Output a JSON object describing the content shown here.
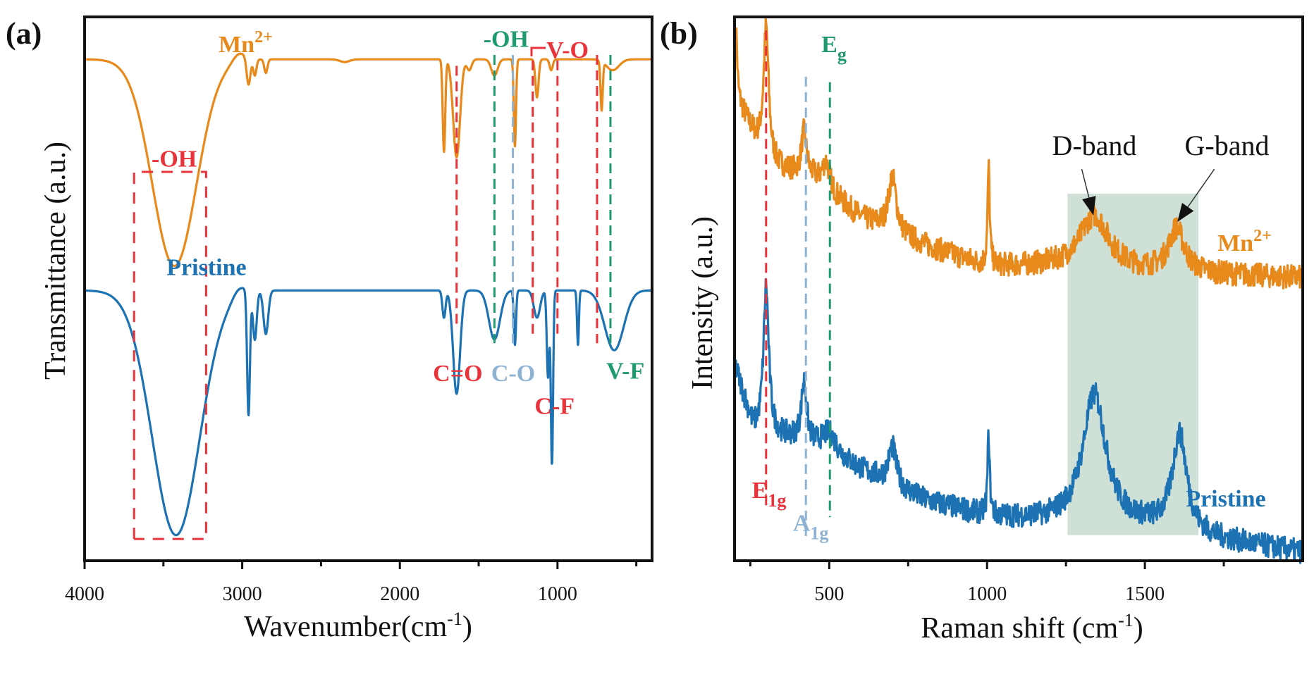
{
  "colors": {
    "mn": "#E8891C",
    "pristine": "#1C72B3",
    "red": "#E8333B",
    "green": "#1F9A6F",
    "lightblue": "#8DB2D4",
    "shade": "#CFE0D6"
  },
  "chart_data": [
    {
      "panel": "(a)",
      "type": "line",
      "xlabel": "Wavenumber",
      "xlabel_unit": "(cm",
      "xlabel_sup": "-1",
      "xlabel_close": ")",
      "ylabel": "Transmittance (a.u.)",
      "xlim": [
        4000,
        400
      ],
      "ylim": [
        0,
        100
      ],
      "xticks": [
        4000,
        3000,
        2000,
        1000
      ],
      "minor_xticks": [
        3500,
        2500,
        1500,
        500
      ],
      "series": [
        {
          "name": "Mn",
          "sup": "2+",
          "color_key": "mn",
          "baseline": [
            [
              4000,
              92.2
            ],
            [
              400,
              92.2
            ]
          ],
          "peaks": [
            [
              3430,
              -38,
              140
            ],
            [
              3020,
              1.5,
              40
            ],
            [
              2960,
              -5,
              12
            ],
            [
              2920,
              -3,
              10
            ],
            [
              2850,
              -2.5,
              10
            ],
            [
              2350,
              -0.5,
              30
            ],
            [
              1720,
              -17,
              8
            ],
            [
              1640,
              -18,
              22
            ],
            [
              1560,
              -2,
              15
            ],
            [
              1400,
              -3,
              20
            ],
            [
              1270,
              -16,
              7
            ],
            [
              1130,
              -7,
              10
            ],
            [
              1040,
              -2,
              10
            ],
            [
              720,
              -9,
              7
            ],
            [
              650,
              -2,
              40
            ]
          ]
        },
        {
          "name": "Pristine",
          "sup": "",
          "color_key": "pristine",
          "baseline": [
            [
              4000,
              49.7
            ],
            [
              400,
              49.7
            ]
          ],
          "peaks": [
            [
              3420,
              -45,
              150
            ],
            [
              3020,
              1.5,
              40
            ],
            [
              2960,
              -23,
              9
            ],
            [
              2920,
              -9,
              12
            ],
            [
              2850,
              -8,
              15
            ],
            [
              1720,
              -5,
              10
            ],
            [
              1640,
              -19,
              22
            ],
            [
              1400,
              -9,
              35
            ],
            [
              1270,
              -10,
              7
            ],
            [
              1130,
              -5,
              20
            ],
            [
              1060,
              -16,
              8
            ],
            [
              1035,
              -32,
              7
            ],
            [
              870,
              -10,
              6
            ],
            [
              640,
              -11,
              60
            ]
          ]
        }
      ],
      "vlines": [
        {
          "x": 1640,
          "color_key": "red",
          "y": [
            91,
            43
          ]
        },
        {
          "x": 1400,
          "color_key": "green",
          "y": [
            93,
            40
          ]
        },
        {
          "x": 1283,
          "color_key": "lightblue",
          "y": [
            93,
            40
          ]
        },
        {
          "x": 1157,
          "color_key": "red",
          "y": [
            92,
            41
          ]
        },
        {
          "x": 1000,
          "color_key": "red",
          "y": [
            92,
            41
          ]
        },
        {
          "x": 749,
          "color_key": "red",
          "y": [
            93,
            40
          ]
        },
        {
          "x": 664,
          "color_key": "green",
          "y": [
            93,
            40
          ]
        }
      ],
      "oh_box": {
        "x": [
          3686,
          3229
        ],
        "y": [
          71.5,
          4
        ]
      },
      "annotations": [
        {
          "text": "-OH",
          "color_key": "green",
          "x": 1470,
          "y": 94.5
        },
        {
          "text": "V-O",
          "color_key": "red",
          "x": 1070,
          "y": 92.5
        },
        {
          "text": "-OH",
          "color_key": "red",
          "x": 3575,
          "y": 72.5
        },
        {
          "text": "Pristine",
          "color_key": "pristine",
          "x": 3480,
          "y": 52.5
        },
        {
          "text": "C=O",
          "color_key": "red",
          "x": 1790,
          "y": 33
        },
        {
          "text": "C-O",
          "color_key": "lightblue",
          "x": 1420,
          "y": 33
        },
        {
          "text": "C-F",
          "color_key": "red",
          "x": 1145,
          "y": 27
        },
        {
          "text": "V-F",
          "color_key": "green",
          "x": 690,
          "y": 33.5
        }
      ],
      "mn_label_pos": {
        "x": 3150,
        "y": 93.5
      }
    },
    {
      "panel": "(b)",
      "type": "line",
      "xlabel": "Raman shift (cm",
      "xlabel_sup": "-1",
      "xlabel_close": ")",
      "ylabel": "Intensity (a.u.)",
      "xlim": [
        200,
        2000
      ],
      "ylim": [
        0,
        100
      ],
      "xticks": [
        500,
        1000,
        1500
      ],
      "minor_xticks": [
        250,
        750,
        1250,
        1750
      ],
      "series": [
        {
          "name": "Mn",
          "sup": "2+",
          "color_key": "mn",
          "noise": 2.2,
          "baseline": [
            [
              200,
              86
            ],
            [
              300,
              73
            ],
            [
              450,
              70
            ],
            [
              600,
              63
            ],
            [
              800,
              58
            ],
            [
              1000,
              54
            ],
            [
              1200,
              54
            ],
            [
              1500,
              53
            ],
            [
              2000,
              52
            ]
          ],
          "peaks": [
            [
              300,
              25,
              10
            ],
            [
              420,
              8,
              10
            ],
            [
              490,
              5,
              15
            ],
            [
              700,
              10,
              15
            ],
            [
              1005,
              18,
              4
            ],
            [
              1340,
              10,
              55
            ],
            [
              1600,
              8,
              30
            ],
            [
              205,
              12,
              4
            ]
          ]
        },
        {
          "name": "Pristine",
          "sup": "",
          "color_key": "pristine",
          "noise": 2.2,
          "baseline": [
            [
              200,
              36
            ],
            [
              260,
              24
            ],
            [
              400,
              22
            ],
            [
              550,
              18
            ],
            [
              800,
              11
            ],
            [
              1000,
              8
            ],
            [
              1200,
              7
            ],
            [
              1500,
              6
            ],
            [
              1700,
              4
            ],
            [
              2000,
              1.5
            ]
          ],
          "peaks": [
            [
              300,
              27,
              10
            ],
            [
              420,
              11,
              10
            ],
            [
              500,
              4,
              30
            ],
            [
              700,
              7,
              15
            ],
            [
              1005,
              15,
              4
            ],
            [
              1340,
              24,
              45
            ],
            [
              1610,
              18,
              28
            ]
          ]
        }
      ],
      "vlines": [
        {
          "x": 300,
          "color_key": "red",
          "y": [
            97.5,
            10
          ]
        },
        {
          "x": 426,
          "color_key": "lightblue",
          "y": [
            89,
            4
          ]
        },
        {
          "x": 502,
          "color_key": "green",
          "y": [
            88,
            8
          ]
        }
      ],
      "shade": {
        "x": [
          1255,
          1670
        ],
        "y": [
          67.5,
          4.7
        ]
      },
      "bands": [
        {
          "text": "D-band",
          "x": 1340,
          "y": 74.6,
          "tip": [
            1337,
            63.5
          ],
          "tail": [
            1300,
            72
          ]
        },
        {
          "text": "G-band",
          "x": 1760,
          "y": 74.6,
          "tip": [
            1603,
            62.3
          ],
          "tail": [
            1720,
            72
          ]
        }
      ],
      "modes": [
        {
          "base": "E",
          "sub": "g",
          "color_key": "green",
          "x": 475,
          "y": 93.5
        },
        {
          "base": "E",
          "sub": "1g",
          "color_key": "red",
          "x": 255,
          "y": 11.5
        },
        {
          "base": "A",
          "sub": "1g",
          "color_key": "lightblue",
          "x": 385,
          "y": 5.5
        }
      ],
      "mn_label_pos": {
        "x": 1730,
        "y": 57
      },
      "pristine_label_pos": {
        "x": 1630,
        "y": 10
      }
    }
  ]
}
